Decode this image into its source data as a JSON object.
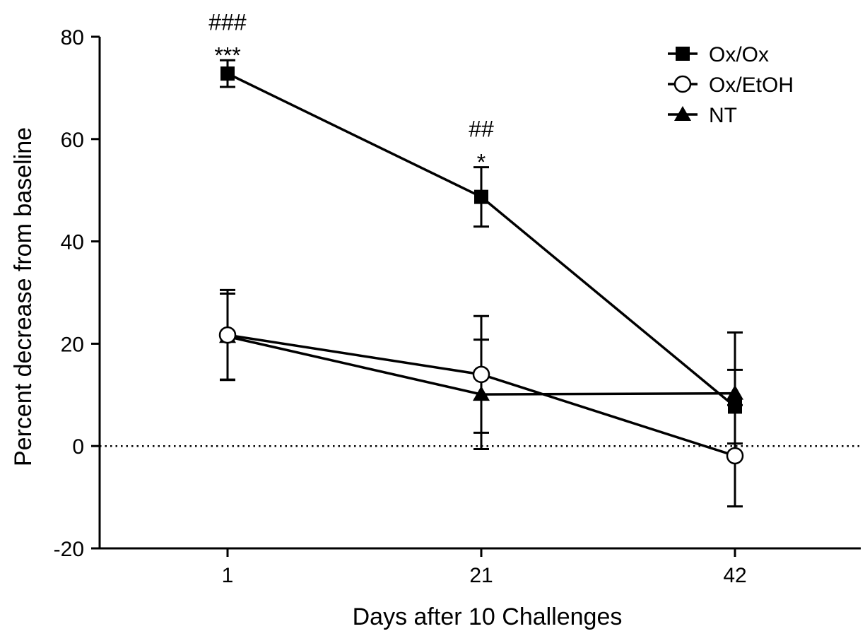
{
  "chart_data": {
    "type": "line",
    "title": "",
    "xlabel": "Days after 10 Challenges",
    "ylabel": "Percent decrease from baseline",
    "categories": [
      "1",
      "21",
      "42"
    ],
    "ylim": [
      -20,
      80
    ],
    "yticks": [
      -20,
      0,
      20,
      40,
      60,
      80
    ],
    "ytick_labels": [
      "-20",
      "0",
      "20",
      "40",
      "60",
      "80"
    ],
    "reference_line": {
      "y": 0,
      "style": "dotted"
    },
    "legend_position": "top-right",
    "series": [
      {
        "name": "Ox/Ox",
        "marker": "square-filled",
        "values": [
          72.8,
          48.7,
          7.7
        ],
        "error": [
          2.6,
          5.8,
          7.2
        ]
      },
      {
        "name": "Ox/EtOH",
        "marker": "circle-open",
        "values": [
          21.7,
          14.0,
          -1.9
        ],
        "error": [
          8.8,
          11.4,
          9.9
        ]
      },
      {
        "name": "NT",
        "marker": "triangle-filled",
        "values": [
          21.4,
          10.1,
          10.3
        ],
        "error": [
          8.4,
          10.7,
          11.9
        ]
      }
    ],
    "annotations": [
      {
        "category": "1",
        "series": "Ox/Ox",
        "lines": [
          "###",
          "***"
        ]
      },
      {
        "category": "21",
        "series": "Ox/Ox",
        "lines": [
          "##",
          "*"
        ]
      }
    ],
    "colors": {
      "line": "#000000",
      "background": "#ffffff"
    }
  }
}
